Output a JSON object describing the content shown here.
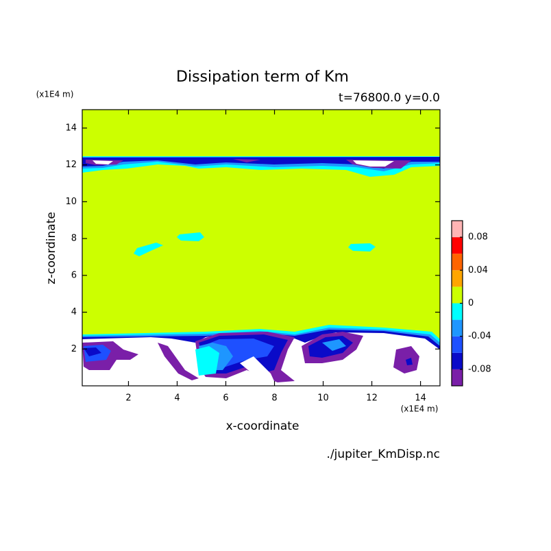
{
  "chart_data": {
    "type": "contour",
    "title": "Dissipation term of Km",
    "subtitle": "t=76800.0 y=0.0",
    "x_label": "x-coordinate",
    "y_label": "z-coordinate",
    "xunit": "(x1E4 m)",
    "yunit": "(x1E4 m)",
    "source": "./jupiter_KmDisp.nc",
    "xlim": [
      0.1,
      14.8
    ],
    "xticks": [
      2,
      4,
      6,
      8,
      10,
      12,
      14
    ],
    "ylim": [
      0,
      15
    ],
    "yticks": [
      2,
      4,
      6,
      8,
      10,
      12,
      14
    ],
    "colorbar": {
      "levels": [
        -0.1,
        -0.08,
        -0.06,
        -0.04,
        -0.02,
        0,
        0.02,
        0.04,
        0.06,
        0.08,
        0.1
      ],
      "colors": [
        "#7a1fa8",
        "#0a0ac8",
        "#1e50ff",
        "#1e96ff",
        "#00ffff",
        "#ccff00",
        "#ffa500",
        "#ff6400",
        "#ff0000",
        "#ffb4b4"
      ],
      "ticks": [
        -0.08,
        -0.04,
        0,
        0.04,
        0.08
      ]
    }
  }
}
